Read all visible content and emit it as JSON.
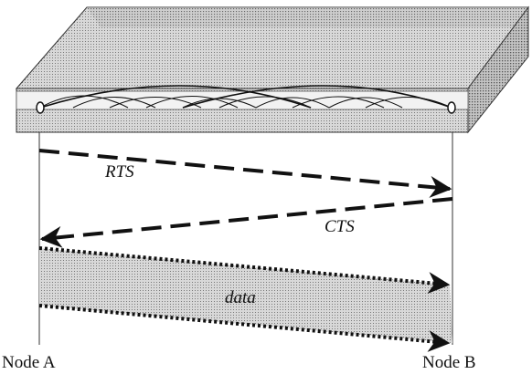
{
  "labels": {
    "rts": "RTS",
    "cts": "CTS",
    "data": "data"
  },
  "nodes": [
    {
      "label": "Node A"
    },
    {
      "label": "Node B"
    }
  ]
}
